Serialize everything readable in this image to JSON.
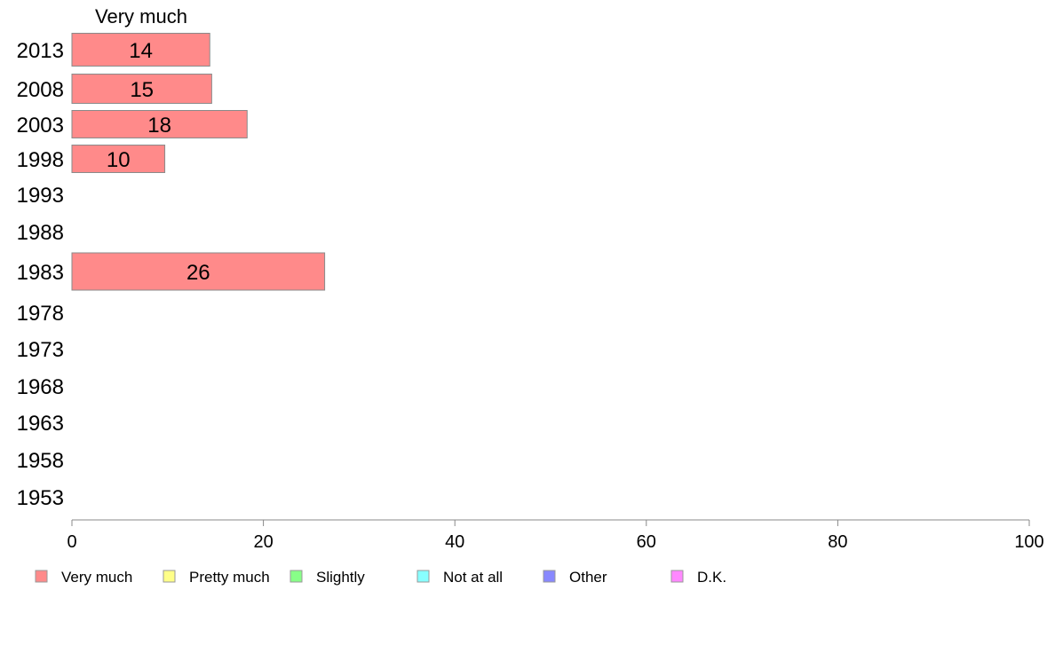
{
  "chart_data": {
    "type": "bar",
    "orientation": "horizontal",
    "column_title": "Very much",
    "categories": [
      "2013",
      "2008",
      "2003",
      "1998",
      "1993",
      "1988",
      "1983",
      "1978",
      "1973",
      "1968",
      "1963",
      "1958",
      "1953"
    ],
    "series": [
      {
        "name": "Very much",
        "color": "#ff8a8a",
        "values": [
          14.4,
          14.6,
          18.3,
          9.7,
          null,
          null,
          26.4,
          null,
          null,
          null,
          null,
          null,
          null
        ]
      }
    ],
    "value_labels": [
      "14",
      "15",
      "18",
      "10",
      "",
      "",
      "26",
      "",
      "",
      "",
      "",
      "",
      ""
    ],
    "xlim": [
      0,
      100
    ],
    "xticks": [
      0,
      20,
      40,
      60,
      80,
      100
    ],
    "grid": false,
    "legend": {
      "position": "bottom",
      "items": [
        {
          "label": "Very much",
          "color": "#ff8a8a"
        },
        {
          "label": "Pretty much",
          "color": "#ffff88"
        },
        {
          "label": "Slightly",
          "color": "#88ff88"
        },
        {
          "label": "Not at all",
          "color": "#88ffff"
        },
        {
          "label": "Other",
          "color": "#8888ff"
        },
        {
          "label": "D.K.",
          "color": "#ff88ff"
        }
      ]
    }
  }
}
